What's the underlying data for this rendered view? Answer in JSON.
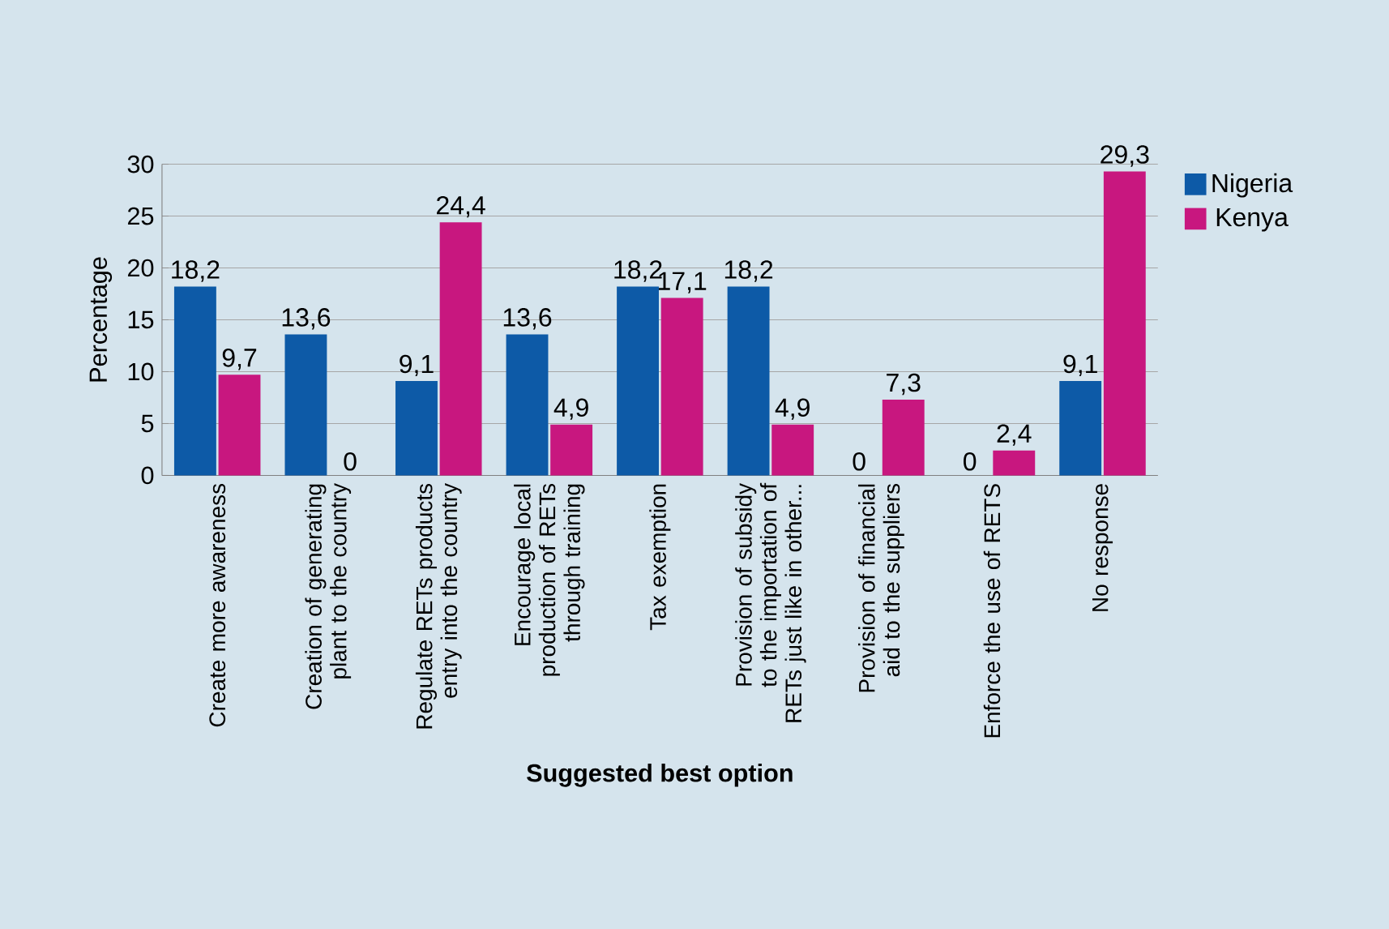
{
  "chart_data": {
    "type": "bar",
    "xlabel": "Suggested best option",
    "ylabel": "Percentage",
    "categories": [
      "Create more awareness",
      "Creation of generating plant to the country",
      "Regulate RETs products entry into the country",
      "Encourage local production of RETs through training",
      "Tax exemption",
      "Provision of subsidy to the importation of RETs just like in other...",
      "Provision of financial aid to the suppliers",
      "Enforce the use of RETS",
      "No response"
    ],
    "series": [
      {
        "name": "Nigeria",
        "color": "#0d5aa7",
        "values": [
          18.2,
          13.6,
          9.1,
          13.6,
          18.2,
          18.2,
          0,
          0,
          9.1
        ],
        "value_labels": [
          "18,2",
          "13,6",
          "9,1",
          "13,6",
          "18,2",
          "18,2",
          "0",
          "0",
          "9,1"
        ]
      },
      {
        "name": "Kenya",
        "color": "#c8177f",
        "values": [
          9.7,
          0,
          24.4,
          4.9,
          17.1,
          4.9,
          7.3,
          2.4,
          29.3
        ],
        "value_labels": [
          "9,7",
          "0",
          "24,4",
          "4,9",
          "17,1",
          "4,9",
          "7,3",
          "2,4",
          "29,3"
        ]
      }
    ],
    "ylim": [
      0,
      30
    ],
    "yticks": [
      0,
      5,
      10,
      15,
      20,
      25,
      30
    ],
    "grid": "y",
    "legend": "top right"
  }
}
